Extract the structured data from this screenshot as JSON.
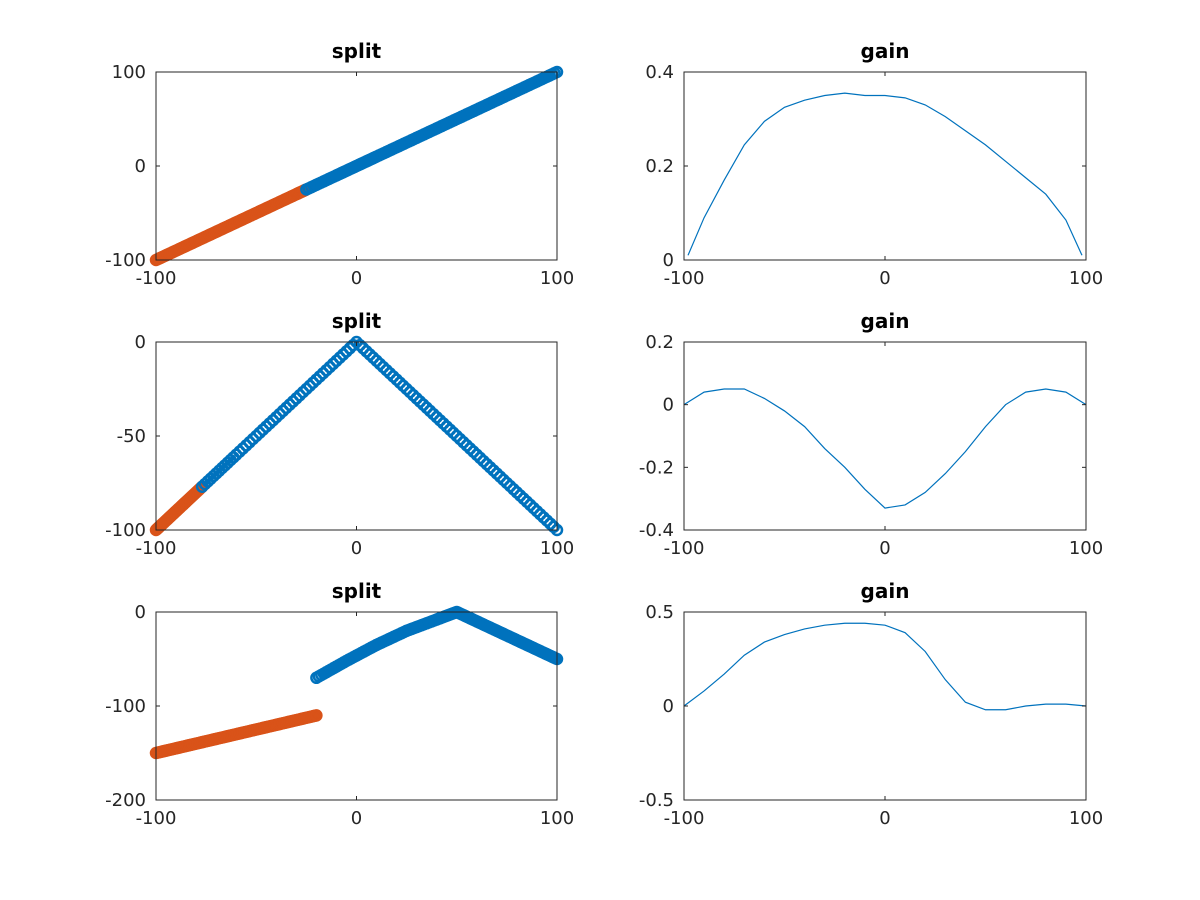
{
  "figure": {
    "background": "#ffffff",
    "axis_color": "#262626"
  },
  "chart_data": [
    {
      "type": "scatter",
      "title": "split",
      "xlim": [
        -100,
        100
      ],
      "ylim": [
        -100,
        100
      ],
      "xticks": [
        -100,
        0,
        100
      ],
      "yticks": [
        -100,
        0,
        100
      ],
      "grid": false,
      "marker": "circle",
      "series": [
        {
          "color": "#D95319",
          "x": [
            -100,
            -90,
            -80,
            -70,
            -60,
            -50,
            -40,
            -30,
            -25
          ],
          "y": [
            -100,
            -90,
            -80,
            -70,
            -60,
            -50,
            -40,
            -30,
            -25
          ]
        },
        {
          "color": "#0072BD",
          "x": [
            -25,
            -10,
            0,
            10,
            25,
            40,
            55,
            70,
            85,
            100
          ],
          "y": [
            -25,
            -10,
            0,
            10,
            25,
            40,
            55,
            70,
            85,
            100
          ]
        }
      ]
    },
    {
      "type": "line",
      "title": "gain",
      "xlim": [
        -100,
        100
      ],
      "ylim": [
        0,
        0.4
      ],
      "xticks": [
        -100,
        0,
        100
      ],
      "yticks": [
        0,
        0.2,
        0.4
      ],
      "grid": false,
      "series": [
        {
          "color": "#0072BD",
          "x": [
            -98,
            -90,
            -80,
            -70,
            -60,
            -50,
            -40,
            -30,
            -20,
            -10,
            0,
            10,
            20,
            30,
            40,
            50,
            60,
            70,
            80,
            90,
            98
          ],
          "y": [
            0.01,
            0.09,
            0.17,
            0.245,
            0.295,
            0.325,
            0.34,
            0.35,
            0.355,
            0.35,
            0.35,
            0.345,
            0.33,
            0.305,
            0.275,
            0.245,
            0.21,
            0.175,
            0.14,
            0.085,
            0.01
          ]
        }
      ]
    },
    {
      "type": "scatter",
      "title": "split",
      "xlim": [
        -100,
        100
      ],
      "ylim": [
        -100,
        0
      ],
      "xticks": [
        -100,
        0,
        100
      ],
      "yticks": [
        -100,
        -50,
        0
      ],
      "grid": false,
      "marker": "circle",
      "series": [
        {
          "color": "#D95319",
          "x": [
            -100,
            -95,
            -90,
            -85,
            -77
          ],
          "y": [
            -100,
            -95,
            -90,
            -85,
            -77
          ]
        },
        {
          "color": "#0072BD",
          "x": [
            -77,
            -60,
            -40,
            -20,
            0,
            20,
            40,
            60,
            80,
            100
          ],
          "y": [
            -77,
            -60,
            -40,
            -20,
            0,
            -20,
            -40,
            -60,
            -80,
            -100
          ]
        }
      ]
    },
    {
      "type": "line",
      "title": "gain",
      "xlim": [
        -100,
        100
      ],
      "ylim": [
        -0.4,
        0.2
      ],
      "xticks": [
        -100,
        0,
        100
      ],
      "yticks": [
        -0.4,
        -0.2,
        0,
        0.2
      ],
      "grid": false,
      "series": [
        {
          "color": "#0072BD",
          "x": [
            -100,
            -90,
            -80,
            -70,
            -60,
            -50,
            -40,
            -30,
            -20,
            -10,
            0,
            10,
            20,
            30,
            40,
            50,
            60,
            70,
            80,
            90,
            100
          ],
          "y": [
            0.0,
            0.04,
            0.05,
            0.05,
            0.02,
            -0.02,
            -0.07,
            -0.14,
            -0.2,
            -0.27,
            -0.33,
            -0.32,
            -0.28,
            -0.22,
            -0.15,
            -0.07,
            0.0,
            0.04,
            0.05,
            0.04,
            0.0
          ]
        }
      ]
    },
    {
      "type": "scatter",
      "title": "split",
      "xlim": [
        -100,
        100
      ],
      "ylim": [
        -200,
        0
      ],
      "xticks": [
        -100,
        0,
        100
      ],
      "yticks": [
        -200,
        -100,
        0
      ],
      "grid": false,
      "marker": "circle",
      "series": [
        {
          "color": "#D95319",
          "x": [
            -100,
            -90,
            -80,
            -70,
            -60,
            -50,
            -40,
            -30,
            -20
          ],
          "y": [
            -150,
            -145,
            -140,
            -135,
            -130,
            -125,
            -120,
            -115,
            -110
          ]
        },
        {
          "color": "#0072BD",
          "x": [
            -20,
            -5,
            10,
            25,
            40,
            50,
            60,
            70,
            80,
            90,
            100
          ],
          "y": [
            -70,
            -52,
            -35,
            -20,
            -8,
            0,
            -10,
            -20,
            -30,
            -40,
            -50
          ]
        }
      ]
    },
    {
      "type": "line",
      "title": "gain",
      "xlim": [
        -100,
        100
      ],
      "ylim": [
        -0.5,
        0.5
      ],
      "xticks": [
        -100,
        0,
        100
      ],
      "yticks": [
        -0.5,
        0,
        0.5
      ],
      "grid": false,
      "series": [
        {
          "color": "#0072BD",
          "x": [
            -100,
            -90,
            -80,
            -70,
            -60,
            -50,
            -40,
            -30,
            -20,
            -10,
            0,
            10,
            20,
            30,
            40,
            50,
            60,
            70,
            80,
            90,
            100
          ],
          "y": [
            0.0,
            0.08,
            0.17,
            0.27,
            0.34,
            0.38,
            0.41,
            0.43,
            0.44,
            0.44,
            0.43,
            0.39,
            0.29,
            0.14,
            0.02,
            -0.02,
            -0.02,
            0.0,
            0.01,
            0.01,
            0.0
          ]
        }
      ]
    }
  ]
}
